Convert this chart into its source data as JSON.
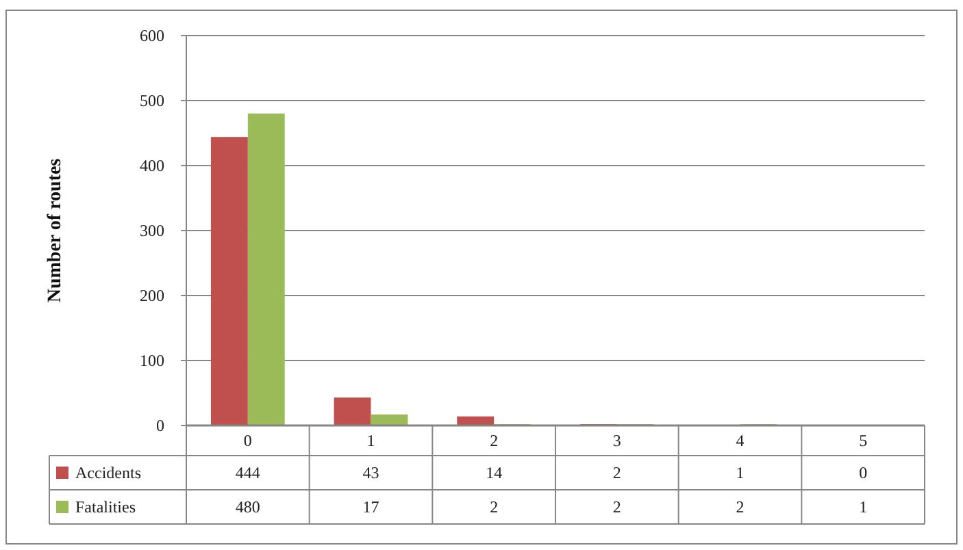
{
  "chart_data": {
    "type": "bar",
    "ylabel": "Number of routes",
    "categories": [
      "0",
      "1",
      "2",
      "3",
      "4",
      "5"
    ],
    "series": [
      {
        "name": "Accidents",
        "color": "#c0504d",
        "values": [
          444,
          43,
          14,
          2,
          1,
          0
        ]
      },
      {
        "name": "Fatalities",
        "color": "#9bbb59",
        "values": [
          480,
          17,
          2,
          2,
          2,
          1
        ]
      }
    ],
    "ylim": [
      0,
      600
    ],
    "yticks": [
      0,
      100,
      200,
      300,
      400,
      500,
      600
    ],
    "grid": "y",
    "legend": "bottom",
    "data_labels": true
  }
}
